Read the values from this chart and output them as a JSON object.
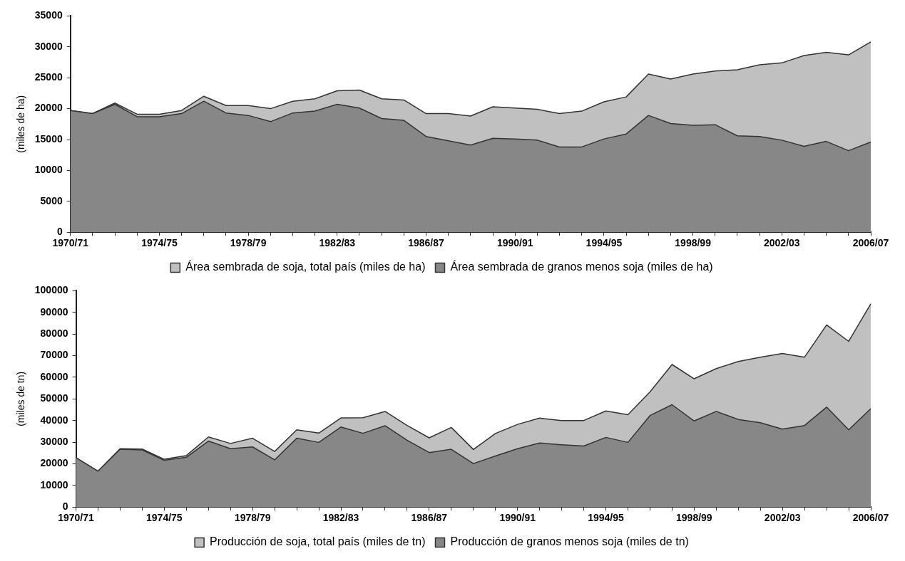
{
  "chart_data": [
    {
      "type": "area",
      "stacked": true,
      "ylabel": "(miles de ha)",
      "legend": "bottom",
      "grid": false,
      "categories": [
        "1970/71",
        null,
        null,
        null,
        "1974/75",
        null,
        null,
        null,
        "1978/79",
        null,
        null,
        null,
        "1982/83",
        null,
        null,
        null,
        "1986/87",
        null,
        null,
        null,
        "1990/91",
        null,
        null,
        null,
        "1994/95",
        null,
        null,
        null,
        "1998/99",
        null,
        null,
        null,
        "2002/03",
        null,
        null,
        null,
        "2006/07"
      ],
      "ylim": [
        0,
        35000
      ],
      "yticks": [
        0,
        5000,
        10000,
        15000,
        20000,
        25000,
        30000,
        35000
      ],
      "series": [
        {
          "name": "Área sembrada de granos menos soja (miles de ha)",
          "color": "#878787",
          "values": [
            19700,
            19200,
            20700,
            18700,
            18700,
            19200,
            21200,
            19300,
            18900,
            17900,
            19300,
            19600,
            20700,
            20100,
            18400,
            18100,
            15500,
            14800,
            14100,
            15200,
            15100,
            14900,
            13800,
            13800,
            15100,
            15900,
            18900,
            17600,
            17300,
            17400,
            15600,
            15500,
            14900,
            13900,
            14700,
            13200,
            14600
          ]
        },
        {
          "name": "Área sembrada de soja, total país (miles de ha)",
          "color": "#c0c0c0",
          "values": [
            0,
            0,
            200,
            400,
            400,
            500,
            800,
            1200,
            1600,
            2100,
            1900,
            2000,
            2200,
            2900,
            3200,
            3300,
            3700,
            4400,
            4700,
            5100,
            5000,
            5000,
            5400,
            5800,
            6000,
            6000,
            6700,
            7200,
            8300,
            8700,
            10700,
            11600,
            12500,
            14700,
            14400,
            15500,
            16200
          ]
        }
      ]
    },
    {
      "type": "area",
      "stacked": true,
      "ylabel": "(miles de tn)",
      "legend": "bottom",
      "grid": false,
      "categories": [
        "1970/71",
        null,
        null,
        null,
        "1974/75",
        null,
        null,
        null,
        "1978/79",
        null,
        null,
        null,
        "1982/83",
        null,
        null,
        null,
        "1986/87",
        null,
        null,
        null,
        "1990/91",
        null,
        null,
        null,
        "1994/95",
        null,
        null,
        null,
        "1998/99",
        null,
        null,
        null,
        "2002/03",
        null,
        null,
        null,
        "2006/07"
      ],
      "ylim": [
        0,
        100000
      ],
      "yticks": [
        0,
        10000,
        20000,
        30000,
        40000,
        50000,
        60000,
        70000,
        80000,
        90000,
        100000
      ],
      "series": [
        {
          "name": "Producción de granos menos soja (miles de tn)",
          "color": "#878787",
          "values": [
            22800,
            16600,
            26700,
            26400,
            21600,
            23000,
            30500,
            27000,
            27800,
            21800,
            31800,
            29900,
            37000,
            34100,
            37600,
            30900,
            25200,
            26700,
            20100,
            23600,
            27000,
            29600,
            28800,
            28200,
            32200,
            29900,
            42300,
            47300,
            39800,
            44200,
            40500,
            39000,
            36000,
            37700,
            46200,
            35700,
            45500
          ]
        },
        {
          "name": "Producción de soja, total país (miles de tn)",
          "color": "#c0c0c0",
          "values": [
            0,
            0,
            300,
            400,
            500,
            800,
            1900,
            2400,
            4000,
            3900,
            3900,
            4300,
            4200,
            7200,
            6600,
            6800,
            6800,
            10100,
            6500,
            10400,
            11200,
            11500,
            11200,
            11800,
            12200,
            12800,
            10900,
            18600,
            19500,
            19800,
            26800,
            30300,
            35000,
            31600,
            38000,
            40900,
            48400
          ]
        }
      ]
    }
  ]
}
